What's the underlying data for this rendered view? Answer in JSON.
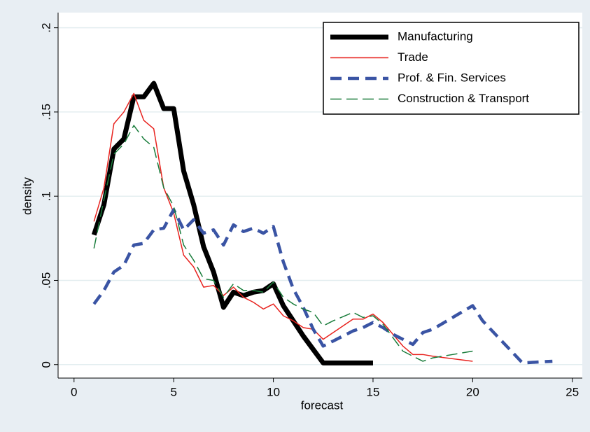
{
  "chart_data": {
    "type": "line",
    "xlabel": "forecast",
    "ylabel": "density",
    "xlim": [
      -0.8,
      25.5
    ],
    "ylim": [
      -0.008,
      0.209
    ],
    "xticks": [
      0,
      5,
      10,
      15,
      20,
      25
    ],
    "yticks": [
      0,
      {
        "value": 0.05,
        "label": ".05"
      },
      {
        "value": 0.1,
        "label": ".1"
      },
      {
        "value": 0.15,
        "label": ".15"
      },
      {
        "value": 0.2,
        "label": ".2"
      }
    ],
    "grid": true,
    "legend": "top-right",
    "series": [
      {
        "name": "Manufacturing",
        "color": "#000000",
        "style": "solid",
        "width": 7,
        "x": [
          1,
          1.5,
          2,
          2.5,
          3,
          3.5,
          4,
          4.5,
          5,
          5.5,
          6,
          6.5,
          7,
          7.5,
          8,
          8.5,
          9,
          9.5,
          10,
          10.5,
          11,
          11.5,
          12,
          12.5,
          13,
          14,
          15
        ],
        "values": [
          0.077,
          0.095,
          0.128,
          0.134,
          0.159,
          0.159,
          0.167,
          0.152,
          0.152,
          0.115,
          0.095,
          0.07,
          0.055,
          0.034,
          0.043,
          0.041,
          0.043,
          0.044,
          0.048,
          0.035,
          0.026,
          0.017,
          0.009,
          0.001,
          0.001,
          0.001,
          0.001
        ]
      },
      {
        "name": "Trade",
        "color": "#e8231f",
        "style": "solid",
        "width": 1.5,
        "x": [
          1,
          1.5,
          2,
          2.5,
          3,
          3.5,
          4,
          4.5,
          5,
          5.5,
          6,
          6.5,
          7,
          7.5,
          8,
          8.5,
          9,
          9.5,
          10,
          10.5,
          11,
          11.5,
          12,
          12.5,
          13,
          13.5,
          14,
          14.5,
          15,
          15.5,
          16,
          16.5,
          17,
          17.5,
          18,
          20
        ],
        "values": [
          0.085,
          0.105,
          0.143,
          0.15,
          0.161,
          0.145,
          0.14,
          0.105,
          0.09,
          0.065,
          0.058,
          0.046,
          0.047,
          0.041,
          0.046,
          0.04,
          0.037,
          0.033,
          0.036,
          0.029,
          0.026,
          0.022,
          0.021,
          0.015,
          0.019,
          0.023,
          0.027,
          0.027,
          0.03,
          0.025,
          0.018,
          0.011,
          0.006,
          0.006,
          0.005,
          0.002
        ]
      },
      {
        "name": "Prof. & Fin. Services",
        "color": "#3a54a4",
        "style": "dashed",
        "width": 4.5,
        "x": [
          1,
          1.5,
          2,
          2.5,
          3,
          3.5,
          4,
          4.5,
          5,
          5.5,
          6,
          6.5,
          7,
          7.5,
          8,
          8.5,
          9,
          9.5,
          10,
          10.5,
          11,
          11.5,
          12,
          12.5,
          13,
          14,
          14.5,
          15,
          15.5,
          16,
          17,
          17.5,
          18,
          20,
          20.5,
          22.5,
          24
        ],
        "values": [
          0.036,
          0.044,
          0.055,
          0.059,
          0.071,
          0.072,
          0.08,
          0.081,
          0.092,
          0.08,
          0.086,
          0.078,
          0.08,
          0.071,
          0.083,
          0.079,
          0.081,
          0.078,
          0.082,
          0.061,
          0.045,
          0.034,
          0.021,
          0.011,
          0.014,
          0.02,
          0.022,
          0.025,
          0.022,
          0.018,
          0.012,
          0.019,
          0.021,
          0.035,
          0.026,
          0.001,
          0.002
        ]
      },
      {
        "name": "Construction & Transport",
        "color": "#1a7d3c",
        "style": "dashed",
        "width": 1.5,
        "x": [
          1,
          1.5,
          2,
          2.5,
          3,
          3.5,
          4,
          4.5,
          5,
          5.5,
          6,
          6.5,
          7,
          7.5,
          8,
          8.5,
          9,
          9.5,
          10,
          10.5,
          11,
          11.5,
          12,
          12.5,
          13,
          14,
          14.5,
          15,
          15.5,
          16,
          16.5,
          17.5,
          18,
          19,
          20
        ],
        "values": [
          0.069,
          0.098,
          0.125,
          0.131,
          0.142,
          0.134,
          0.129,
          0.105,
          0.094,
          0.071,
          0.062,
          0.051,
          0.05,
          0.04,
          0.048,
          0.044,
          0.044,
          0.043,
          0.049,
          0.04,
          0.036,
          0.033,
          0.031,
          0.023,
          0.026,
          0.031,
          0.028,
          0.029,
          0.024,
          0.016,
          0.008,
          0.002,
          0.004,
          0.006,
          0.008
        ]
      }
    ]
  }
}
